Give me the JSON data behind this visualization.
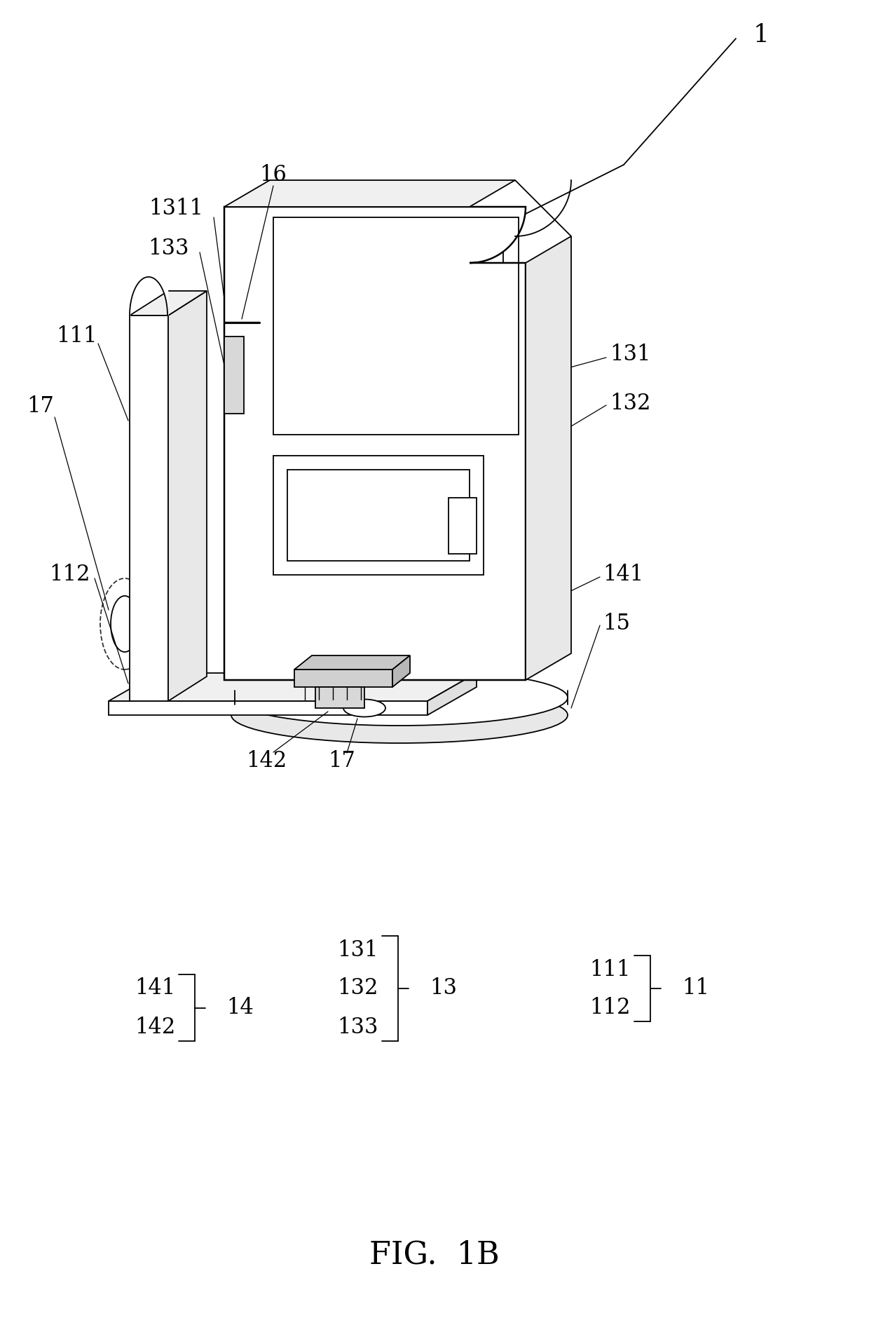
{
  "title": "FIG. 1B",
  "bg": "#ffffff",
  "lc": "#000000",
  "lw": 1.3,
  "fig_w": 12.4,
  "fig_h": 19.1
}
